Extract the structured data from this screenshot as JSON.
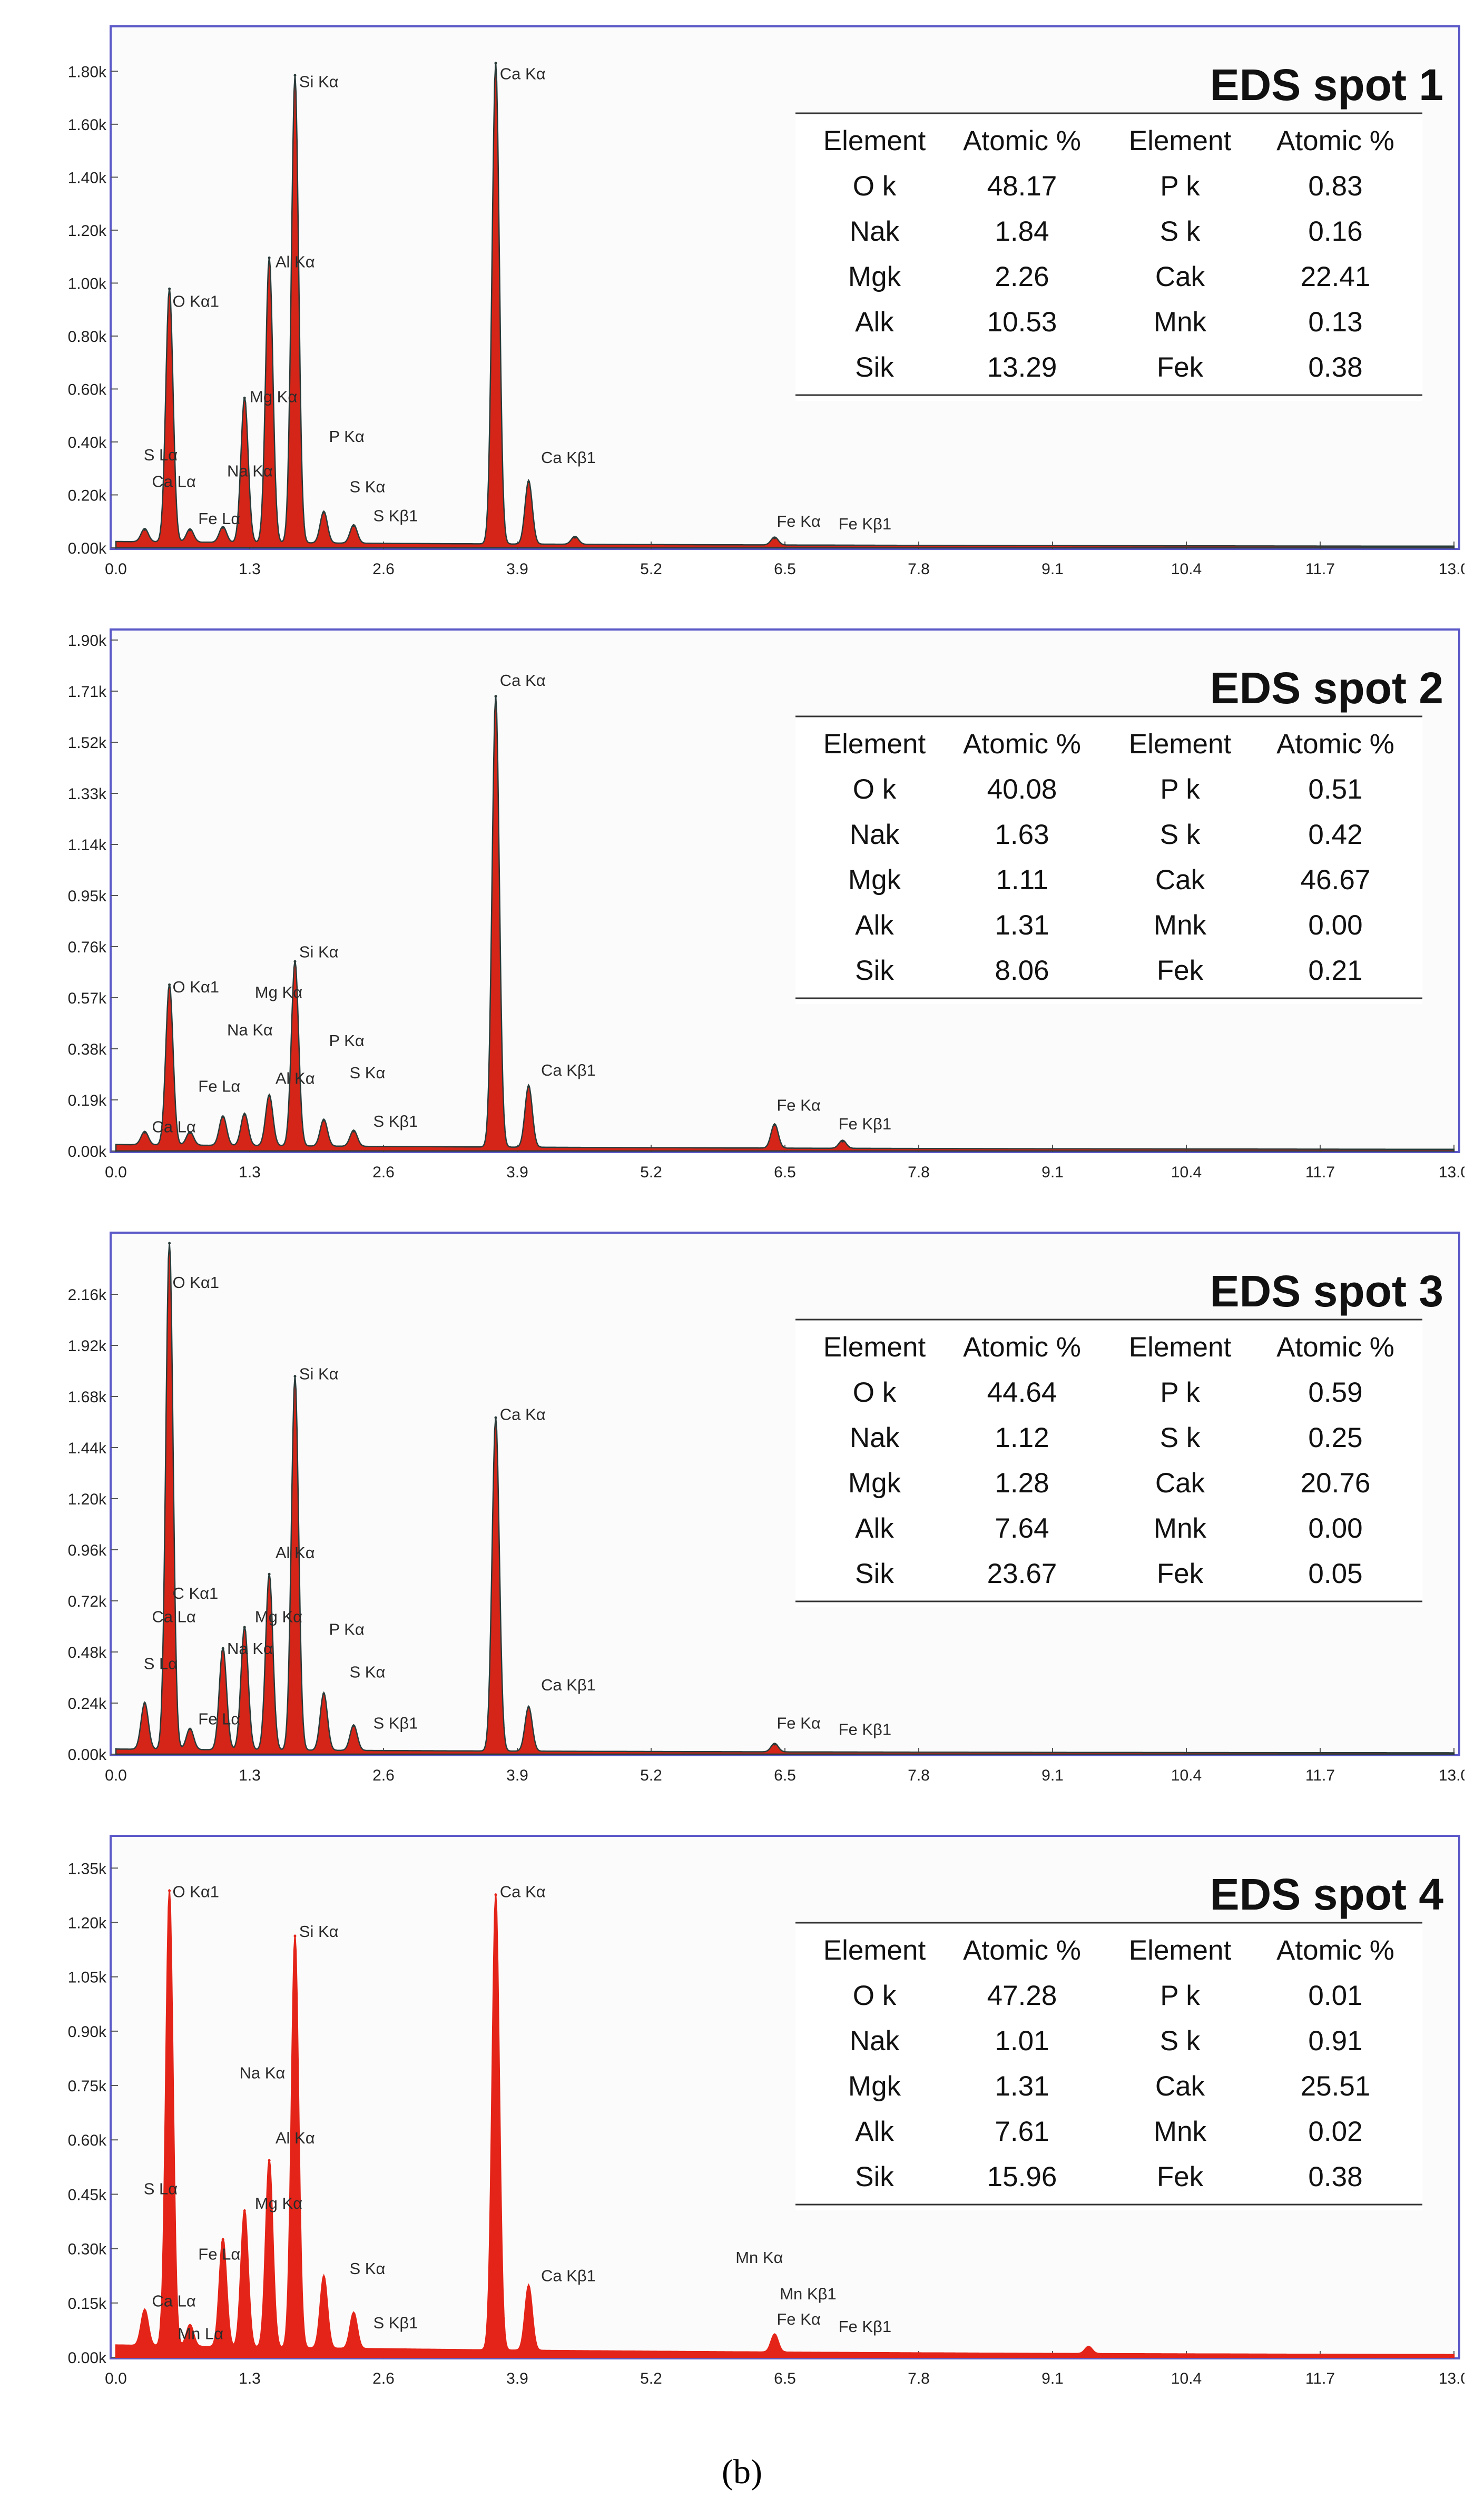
{
  "figure_caption": "(b)",
  "chart_data": [
    {
      "type": "line",
      "title": "EDS spot 1",
      "x_ticks": [
        "0.0",
        "1.3",
        "2.6",
        "3.9",
        "5.2",
        "6.5",
        "7.8",
        "9.1",
        "10.4",
        "11.7",
        "13.0"
      ],
      "y_ticks": [
        "0.00k",
        "0.20k",
        "0.40k",
        "0.60k",
        "0.80k",
        "1.00k",
        "1.20k",
        "1.40k",
        "1.60k",
        "1.80k"
      ],
      "xlim": [
        0,
        13
      ],
      "ylim": [
        0,
        1.93
      ],
      "fill_color": "#d42518",
      "outline_color": "#2a3c3a",
      "baseline": 0.02,
      "peaks": [
        {
          "x": 0.28,
          "h": 0.05
        },
        {
          "x": 0.52,
          "h": 0.96
        },
        {
          "x": 0.72,
          "h": 0.05
        },
        {
          "x": 1.04,
          "h": 0.06
        },
        {
          "x": 1.25,
          "h": 0.55
        },
        {
          "x": 1.49,
          "h": 1.08
        },
        {
          "x": 1.74,
          "h": 1.77
        },
        {
          "x": 2.02,
          "h": 0.12
        },
        {
          "x": 2.31,
          "h": 0.07
        },
        {
          "x": 3.69,
          "h": 1.82
        },
        {
          "x": 4.01,
          "h": 0.24
        },
        {
          "x": 4.46,
          "h": 0.03
        },
        {
          "x": 6.4,
          "h": 0.03
        }
      ],
      "labels": [
        {
          "text": "O  Kα1",
          "x": 0.55,
          "y": 0.91
        },
        {
          "text": "Si Kα",
          "x": 1.78,
          "y": 1.74
        },
        {
          "text": "Al Kα",
          "x": 1.55,
          "y": 1.06
        },
        {
          "text": "Ca Kα",
          "x": 3.73,
          "y": 1.77
        },
        {
          "text": "Mg Kα",
          "x": 1.3,
          "y": 0.55
        },
        {
          "text": "P  Kα",
          "x": 2.07,
          "y": 0.4
        },
        {
          "text": "Na Kα",
          "x": 1.08,
          "y": 0.27
        },
        {
          "text": "S  Lα",
          "x": 0.27,
          "y": 0.33
        },
        {
          "text": "Ca Lα",
          "x": 0.35,
          "y": 0.23
        },
        {
          "text": "Fe Lα",
          "x": 0.8,
          "y": 0.09
        },
        {
          "text": "S  Kα",
          "x": 2.27,
          "y": 0.21
        },
        {
          "text": "S  Kβ1",
          "x": 2.5,
          "y": 0.1
        },
        {
          "text": "Ca Kβ1",
          "x": 4.13,
          "y": 0.32
        },
        {
          "text": "Fe Kα",
          "x": 6.42,
          "y": 0.08
        },
        {
          "text": "Fe Kβ1",
          "x": 7.02,
          "y": 0.07
        }
      ],
      "table": {
        "headers": [
          "Element",
          "Atomic %",
          "Element",
          "Atomic %"
        ],
        "rows": [
          [
            "O k",
            "48.17",
            "P k",
            "0.83"
          ],
          [
            "Nak",
            "1.84",
            "S k",
            "0.16"
          ],
          [
            "Mgk",
            "2.26",
            "Cak",
            "22.41"
          ],
          [
            "Alk",
            "10.53",
            "Mnk",
            "0.13"
          ],
          [
            "Sik",
            "13.29",
            "Fek",
            "0.38"
          ]
        ]
      }
    },
    {
      "type": "line",
      "title": "EDS spot 2",
      "x_ticks": [
        "0.0",
        "1.3",
        "2.6",
        "3.9",
        "5.2",
        "6.5",
        "7.8",
        "9.1",
        "10.4",
        "11.7",
        "13.0"
      ],
      "y_ticks": [
        "0.00k",
        "0.19k",
        "0.38k",
        "0.57k",
        "0.76k",
        "0.95k",
        "1.14k",
        "1.33k",
        "1.52k",
        "1.71k",
        "1.90k"
      ],
      "xlim": [
        0,
        13
      ],
      "ylim": [
        0,
        1.9
      ],
      "fill_color": "#d42518",
      "outline_color": "#2a3c3a",
      "baseline": 0.02,
      "peaks": [
        {
          "x": 0.28,
          "h": 0.05
        },
        {
          "x": 0.52,
          "h": 0.6
        },
        {
          "x": 0.72,
          "h": 0.05
        },
        {
          "x": 1.04,
          "h": 0.11
        },
        {
          "x": 1.25,
          "h": 0.12
        },
        {
          "x": 1.49,
          "h": 0.19
        },
        {
          "x": 1.74,
          "h": 0.69
        },
        {
          "x": 2.02,
          "h": 0.1
        },
        {
          "x": 2.31,
          "h": 0.06
        },
        {
          "x": 3.69,
          "h": 1.68
        },
        {
          "x": 4.01,
          "h": 0.23
        },
        {
          "x": 6.4,
          "h": 0.09
        },
        {
          "x": 7.06,
          "h": 0.03
        }
      ],
      "labels": [
        {
          "text": "Ca Kα",
          "x": 3.73,
          "y": 1.73
        },
        {
          "text": "Si Kα",
          "x": 1.78,
          "y": 0.72
        },
        {
          "text": "O  Kα1",
          "x": 0.55,
          "y": 0.59
        },
        {
          "text": "Mg Kα",
          "x": 1.35,
          "y": 0.57
        },
        {
          "text": "Na Kα",
          "x": 1.08,
          "y": 0.43
        },
        {
          "text": "P  Kα",
          "x": 2.07,
          "y": 0.39
        },
        {
          "text": "Al Kα",
          "x": 1.55,
          "y": 0.25
        },
        {
          "text": "S  Kα",
          "x": 2.27,
          "y": 0.27
        },
        {
          "text": "Fe Lα",
          "x": 0.8,
          "y": 0.22
        },
        {
          "text": "Ca Lα",
          "x": 0.35,
          "y": 0.07
        },
        {
          "text": "S  Kβ1",
          "x": 2.5,
          "y": 0.09
        },
        {
          "text": "Ca Kβ1",
          "x": 4.13,
          "y": 0.28
        },
        {
          "text": "Fe Kα",
          "x": 6.42,
          "y": 0.15
        },
        {
          "text": "Fe Kβ1",
          "x": 7.02,
          "y": 0.08
        }
      ],
      "table": {
        "headers": [
          "Element",
          "Atomic %",
          "Element",
          "Atomic %"
        ],
        "rows": [
          [
            "O k",
            "40.08",
            "P k",
            "0.51"
          ],
          [
            "Nak",
            "1.63",
            "S k",
            "0.42"
          ],
          [
            "Mgk",
            "1.11",
            "Cak",
            "46.67"
          ],
          [
            "Alk",
            "1.31",
            "Mnk",
            "0.00"
          ],
          [
            "Sik",
            "8.06",
            "Fek",
            "0.21"
          ]
        ]
      }
    },
    {
      "type": "line",
      "title": "EDS spot 3",
      "x_ticks": [
        "0.0",
        "1.3",
        "2.6",
        "3.9",
        "5.2",
        "6.5",
        "7.8",
        "9.1",
        "10.4",
        "11.7",
        "13.0"
      ],
      "y_ticks": [
        "0.00k",
        "0.24k",
        "0.48k",
        "0.72k",
        "0.96k",
        "1.20k",
        "1.44k",
        "1.68k",
        "1.92k",
        "2.16k"
      ],
      "xlim": [
        0,
        13
      ],
      "ylim": [
        0,
        2.4
      ],
      "fill_color": "#d42518",
      "outline_color": "#2a3c3a",
      "baseline": 0.02,
      "peaks": [
        {
          "x": 0.28,
          "h": 0.22
        },
        {
          "x": 0.52,
          "h": 2.4
        },
        {
          "x": 0.72,
          "h": 0.1
        },
        {
          "x": 1.04,
          "h": 0.48
        },
        {
          "x": 1.25,
          "h": 0.58
        },
        {
          "x": 1.49,
          "h": 0.83
        },
        {
          "x": 1.74,
          "h": 1.76
        },
        {
          "x": 2.02,
          "h": 0.27
        },
        {
          "x": 2.31,
          "h": 0.12
        },
        {
          "x": 3.69,
          "h": 1.57
        },
        {
          "x": 4.01,
          "h": 0.21
        },
        {
          "x": 6.4,
          "h": 0.04
        }
      ],
      "labels": [
        {
          "text": "O  Kα1",
          "x": 0.55,
          "y": 2.19
        },
        {
          "text": "Si Kα",
          "x": 1.78,
          "y": 1.76
        },
        {
          "text": "Ca Kα",
          "x": 3.73,
          "y": 1.57
        },
        {
          "text": "Al Kα",
          "x": 1.55,
          "y": 0.92
        },
        {
          "text": "C  Kα1",
          "x": 0.55,
          "y": 0.73
        },
        {
          "text": "Ca Lα",
          "x": 0.35,
          "y": 0.62
        },
        {
          "text": "Mg Kα",
          "x": 1.35,
          "y": 0.62
        },
        {
          "text": "P  Kα",
          "x": 2.07,
          "y": 0.56
        },
        {
          "text": "Na Kα",
          "x": 1.08,
          "y": 0.47
        },
        {
          "text": "S  Lα",
          "x": 0.27,
          "y": 0.4
        },
        {
          "text": "S  Kα",
          "x": 2.27,
          "y": 0.36
        },
        {
          "text": "Ca Kβ1",
          "x": 4.13,
          "y": 0.3
        },
        {
          "text": "Fe Lα",
          "x": 0.8,
          "y": 0.14
        },
        {
          "text": "S  Kβ1",
          "x": 2.5,
          "y": 0.12
        },
        {
          "text": "Fe Kα",
          "x": 6.42,
          "y": 0.12
        },
        {
          "text": "Fe Kβ1",
          "x": 7.02,
          "y": 0.09
        }
      ],
      "table": {
        "headers": [
          "Element",
          "Atomic %",
          "Element",
          "Atomic %"
        ],
        "rows": [
          [
            "O k",
            "44.64",
            "P k",
            "0.59"
          ],
          [
            "Nak",
            "1.12",
            "S k",
            "0.25"
          ],
          [
            "Mgk",
            "1.28",
            "Cak",
            "20.76"
          ],
          [
            "Alk",
            "7.64",
            "Mnk",
            "0.00"
          ],
          [
            "Sik",
            "23.67",
            "Fek",
            "0.05"
          ]
        ]
      }
    },
    {
      "type": "line",
      "title": "EDS spot 4",
      "x_ticks": [
        "0.0",
        "1.3",
        "2.6",
        "3.9",
        "5.2",
        "6.5",
        "7.8",
        "9.1",
        "10.4",
        "11.7",
        "13.0"
      ],
      "y_ticks": [
        "0.00k",
        "0.15k",
        "0.30k",
        "0.45k",
        "0.60k",
        "0.75k",
        "0.90k",
        "1.05k",
        "1.20k",
        "1.35k"
      ],
      "xlim": [
        0,
        13
      ],
      "ylim": [
        0,
        1.41
      ],
      "fill_color": "#e42418",
      "outline_color": "#e42418",
      "baseline": 0.03,
      "peaks": [
        {
          "x": 0.28,
          "h": 0.1
        },
        {
          "x": 0.52,
          "h": 1.26
        },
        {
          "x": 0.72,
          "h": 0.06
        },
        {
          "x": 1.04,
          "h": 0.3
        },
        {
          "x": 1.25,
          "h": 0.38
        },
        {
          "x": 1.49,
          "h": 0.52
        },
        {
          "x": 1.74,
          "h": 1.14
        },
        {
          "x": 2.02,
          "h": 0.2
        },
        {
          "x": 2.31,
          "h": 0.1
        },
        {
          "x": 3.69,
          "h": 1.26
        },
        {
          "x": 4.01,
          "h": 0.18
        },
        {
          "x": 6.4,
          "h": 0.05
        },
        {
          "x": 9.45,
          "h": 0.02
        }
      ],
      "labels": [
        {
          "text": "O  Kα1",
          "x": 0.55,
          "y": 1.27
        },
        {
          "text": "Ca Kα",
          "x": 3.73,
          "y": 1.27
        },
        {
          "text": "Si Kα",
          "x": 1.78,
          "y": 1.16
        },
        {
          "text": "Na Kα",
          "x": 1.2,
          "y": 0.77
        },
        {
          "text": "Al Kα",
          "x": 1.55,
          "y": 0.59
        },
        {
          "text": "S  Lα",
          "x": 0.27,
          "y": 0.45
        },
        {
          "text": "Mg Kα",
          "x": 1.35,
          "y": 0.41
        },
        {
          "text": "Fe Lα",
          "x": 0.8,
          "y": 0.27
        },
        {
          "text": "S  Kα",
          "x": 2.27,
          "y": 0.23
        },
        {
          "text": "Ca Kβ1",
          "x": 4.13,
          "y": 0.21
        },
        {
          "text": "Mn Kα",
          "x": 6.02,
          "y": 0.26
        },
        {
          "text": "Mn Kβ1",
          "x": 6.45,
          "y": 0.16
        },
        {
          "text": "Ca Lα",
          "x": 0.35,
          "y": 0.14
        },
        {
          "text": "Fe Kα",
          "x": 6.42,
          "y": 0.09
        },
        {
          "text": "Mn Lα",
          "x": 0.6,
          "y": 0.05
        },
        {
          "text": "S  Kβ1",
          "x": 2.5,
          "y": 0.08
        },
        {
          "text": "Fe Kβ1",
          "x": 7.02,
          "y": 0.07
        }
      ],
      "table": {
        "headers": [
          "Element",
          "Atomic %",
          "Element",
          "Atomic %"
        ],
        "rows": [
          [
            "O k",
            "47.28",
            "P k",
            "0.01"
          ],
          [
            "Nak",
            "1.01",
            "S k",
            "0.91"
          ],
          [
            "Mgk",
            "1.31",
            "Cak",
            "25.51"
          ],
          [
            "Alk",
            "7.61",
            "Mnk",
            "0.02"
          ],
          [
            "Sik",
            "15.96",
            "Fek",
            "0.38"
          ]
        ]
      }
    }
  ]
}
